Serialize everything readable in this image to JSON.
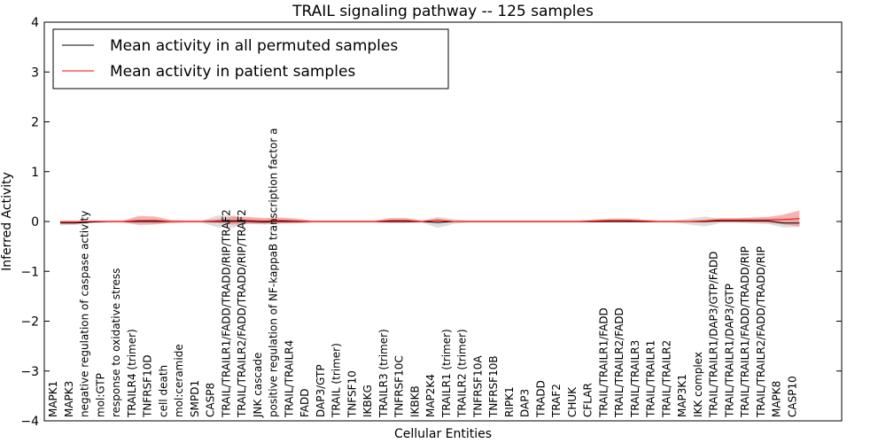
{
  "chart_data": {
    "type": "line",
    "title": "TRAIL signaling pathway -- 125 samples",
    "xlabel": "Cellular Entities",
    "ylabel": "Inferred Activity",
    "ylim": [
      -4,
      4
    ],
    "yticks": [
      -4,
      -3,
      -2,
      -1,
      0,
      1,
      2,
      3,
      4
    ],
    "ytick_labels": [
      "−4",
      "−3",
      "−2",
      "−1",
      "0",
      "1",
      "2",
      "3",
      "4"
    ],
    "grid": false,
    "legend_position": "top-left",
    "categories": [
      "MAPK1",
      "MAPK3",
      "negative regulation of caspase activity",
      "mol:GTP",
      "response to oxidative stress",
      "TRAILR4 (trimer)",
      "TNFRSF10D",
      "cell death",
      "mol:ceramide",
      "SMPD1",
      "CASP8",
      "TRAIL/TRAILR1/FADD/TRADD/RIP/TRAF2",
      "TRAIL/TRAILR2/FADD/TRADD/RIP/TRAF2",
      "JNK cascade",
      "positive regulation of NF-kappaB transcription factor a",
      "TRAIL/TRAILR4",
      "FADD",
      "DAP3/GTP",
      "TRAIL (trimer)",
      "TNFSF10",
      "IKBKG",
      "TRAILR3 (trimer)",
      "TNFRSF10C",
      "IKBKB",
      "MAP2K4",
      "TRAILR1 (trimer)",
      "TRAILR2 (trimer)",
      "TNFRSF10A",
      "TNFRSF10B",
      "RIPK1",
      "DAP3",
      "TRADD",
      "TRAF2",
      "CHUK",
      "CFLAR",
      "TRAIL/TRAILR1/FADD",
      "TRAIL/TRAILR2/FADD",
      "TRAIL/TRAILR3",
      "TRAIL/TRAILR1",
      "TRAIL/TRAILR2",
      "MAP3K1",
      "IKK complex",
      "TRAIL/TRAILR1/DAP3/GTP/FADD",
      "TRAIL/TRAILR1/DAP3/GTP",
      "TRAIL/TRAILR1/FADD/TRADD/RIP",
      "TRAIL/TRAILR2/FADD/TRADD/RIP",
      "MAPK8",
      "CASP10"
    ],
    "series": [
      {
        "name": "Mean activity in all permuted samples",
        "color": "#000000",
        "band_color": "#c8c8c8",
        "values": [
          -0.03,
          -0.03,
          -0.01,
          0,
          0,
          0,
          0,
          0,
          0,
          0,
          0,
          0,
          0,
          -0.01,
          0,
          0,
          0,
          0,
          0,
          0,
          0,
          0,
          0,
          0,
          -0.02,
          0,
          0,
          0,
          0,
          0,
          0,
          0,
          0,
          0,
          0,
          0,
          0,
          0,
          0,
          0,
          0,
          0,
          0.01,
          0.01,
          0.01,
          0.01,
          -0.03,
          -0.03
        ],
        "band": [
          0.05,
          0.04,
          0.02,
          0.02,
          0.02,
          0.03,
          0.04,
          0.03,
          0.02,
          0.02,
          0.12,
          0.12,
          0.04,
          0.05,
          0.04,
          0.02,
          0.02,
          0.02,
          0.02,
          0.02,
          0.02,
          0.02,
          0.02,
          0.02,
          0.11,
          0.05,
          0.02,
          0.02,
          0.02,
          0.02,
          0.02,
          0.02,
          0.02,
          0.02,
          0.02,
          0.02,
          0.02,
          0.02,
          0.02,
          0.02,
          0.06,
          0.1,
          0.04,
          0.04,
          0.05,
          0.06,
          0.09,
          0.08
        ]
      },
      {
        "name": "Mean activity in patient samples",
        "color": "#ff0000",
        "band_color": "#f08080",
        "values": [
          -0.01,
          -0.01,
          0,
          0,
          0,
          0.02,
          0.02,
          0,
          0,
          0,
          0.01,
          0.02,
          0.02,
          0.01,
          0.02,
          0.01,
          0,
          0,
          0,
          0,
          0,
          0.02,
          0.02,
          0,
          0.02,
          0,
          0,
          0,
          0,
          0,
          0,
          0,
          0,
          0,
          0.01,
          0.02,
          0.02,
          0.01,
          0,
          0,
          0,
          0.01,
          0.03,
          0.03,
          0.03,
          0.03,
          0.04,
          0.06
        ],
        "band": [
          0.03,
          0.03,
          0.02,
          0.02,
          0.02,
          0.09,
          0.08,
          0.03,
          0.02,
          0.02,
          0.04,
          0.08,
          0.07,
          0.06,
          0.06,
          0.05,
          0.02,
          0.02,
          0.02,
          0.02,
          0.02,
          0.05,
          0.05,
          0.02,
          0.04,
          0.02,
          0.02,
          0.02,
          0.02,
          0.02,
          0.02,
          0.02,
          0.02,
          0.02,
          0.03,
          0.04,
          0.04,
          0.03,
          0.02,
          0.02,
          0.02,
          0.03,
          0.04,
          0.04,
          0.05,
          0.06,
          0.1,
          0.16
        ]
      }
    ]
  }
}
